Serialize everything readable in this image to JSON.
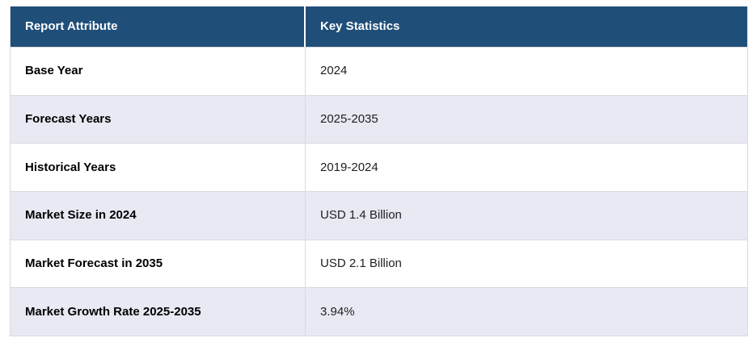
{
  "chart_data": {
    "type": "table",
    "title": "Report Attribute / Key Statistics",
    "columns": [
      "Report Attribute",
      "Key Statistics"
    ],
    "rows": [
      [
        "Base Year",
        "2024"
      ],
      [
        "Forecast Years",
        "2025-2035"
      ],
      [
        "Historical Years",
        "2019-2024"
      ],
      [
        "Market Size in 2024",
        "USD 1.4 Billion"
      ],
      [
        "Market Forecast in 2035",
        "USD 2.1 Billion"
      ],
      [
        "Market Growth Rate 2025-2035",
        "3.94%"
      ]
    ],
    "layout": "two-column attribute/value table, header row dark navy, zebra-striped body rows"
  },
  "table": {
    "headers": [
      "Report Attribute",
      "Key Statistics"
    ],
    "rows": [
      {
        "attribute": "Base Year",
        "value": "2024"
      },
      {
        "attribute": "Forecast Years",
        "value": "2025-2035"
      },
      {
        "attribute": "Historical Years",
        "value": "2019-2024"
      },
      {
        "attribute": "Market Size in 2024",
        "value": "USD 1.4 Billion"
      },
      {
        "attribute": "Market Forecast in 2035",
        "value": "USD 2.1 Billion"
      },
      {
        "attribute": "Market Growth Rate 2025-2035",
        "value": "3.94%"
      }
    ]
  },
  "colors": {
    "header_bg": "#1f4e79",
    "header_text": "#ffffff",
    "row_bg": "#ffffff",
    "row_alt_bg": "#e8e9f3",
    "border": "#d8d9de",
    "label_text": "#000000",
    "value_text": "#1f1f1f"
  }
}
